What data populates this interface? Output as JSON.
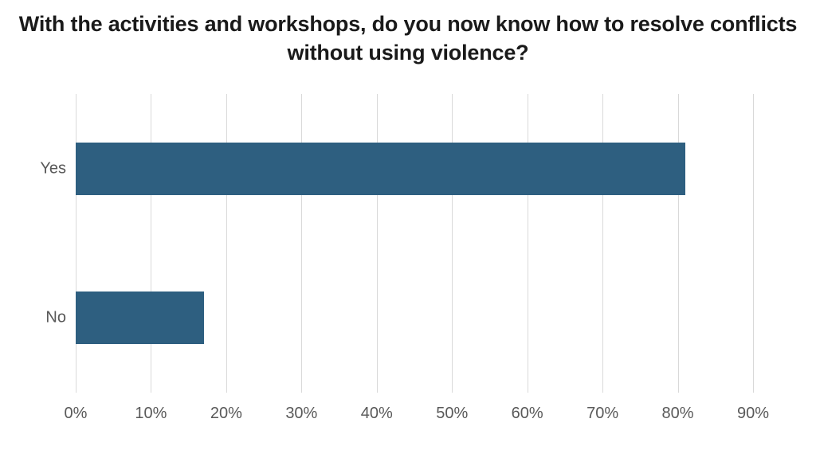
{
  "chart_data": {
    "type": "bar",
    "orientation": "horizontal",
    "title": "With the activities and workshops, do you now know how to resolve conflicts without using violence?",
    "categories": [
      "Yes",
      "No"
    ],
    "values": [
      81,
      17
    ],
    "xlabel": "",
    "ylabel": "",
    "xlim": [
      0,
      90
    ],
    "tick_step": 10,
    "tick_labels": [
      "0%",
      "10%",
      "20%",
      "30%",
      "40%",
      "50%",
      "60%",
      "70%",
      "80%",
      "90%"
    ],
    "grid": true,
    "legend": false,
    "colors": {
      "bar": "#2e5f80",
      "gridline": "#d9d9d9",
      "axis_label": "#595959",
      "title_text": "#1a1a1a",
      "background": "#ffffff"
    }
  }
}
